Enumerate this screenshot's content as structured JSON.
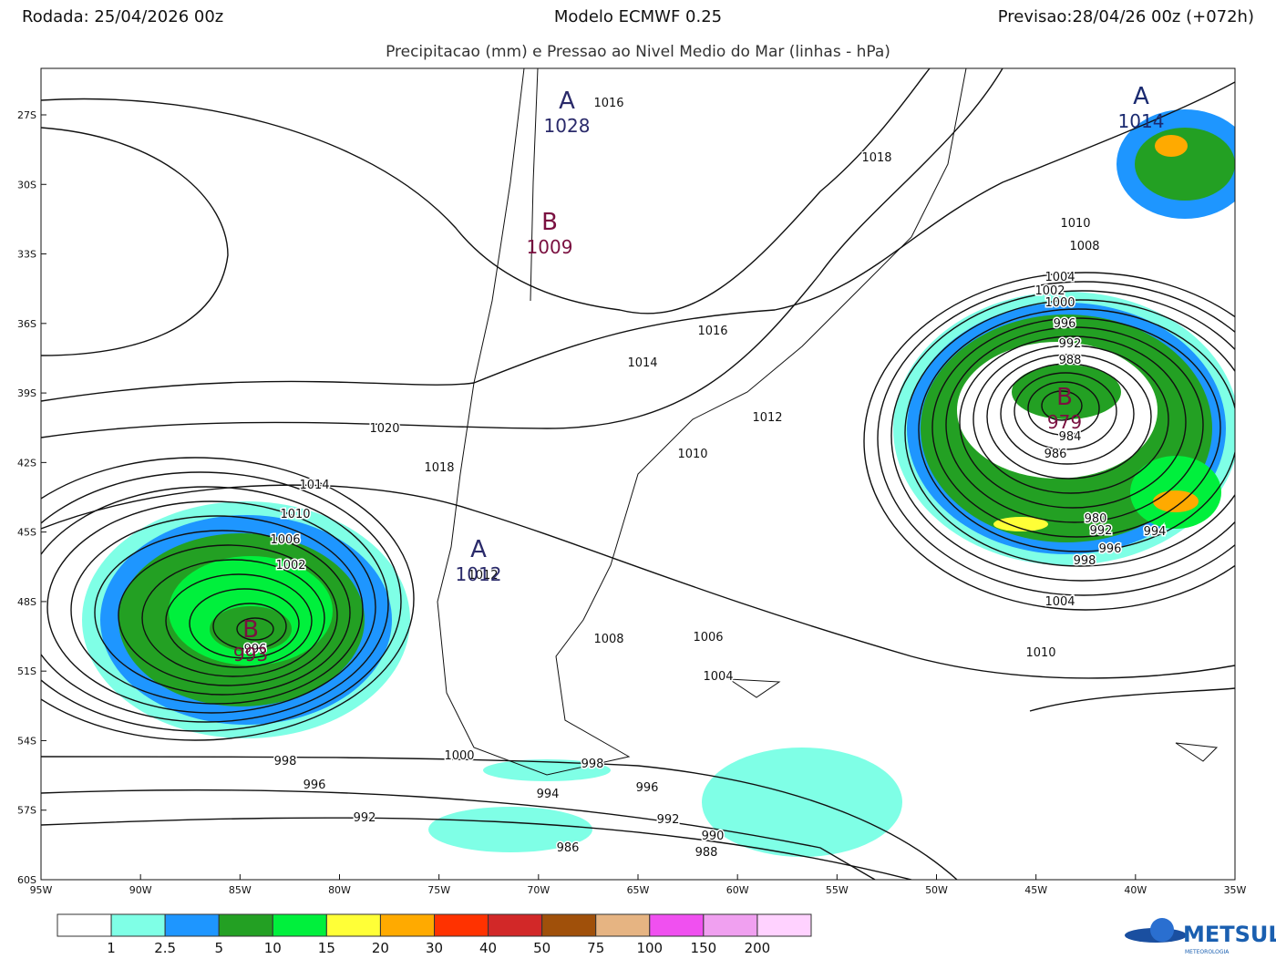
{
  "header": {
    "left": "Rodada: 25/04/2026 00z",
    "center": "Modelo ECMWF 0.25",
    "right": "Previsao:28/04/26 00z (+072h)"
  },
  "subtitle": "Precipitacao (mm) e Pressao ao Nivel Medio do Mar (linhas - hPa)",
  "lat_labels": [
    "27S",
    "30S",
    "33S",
    "36S",
    "39S",
    "42S",
    "45S",
    "48S",
    "51S",
    "54S",
    "57S",
    "60S"
  ],
  "lon_labels": [
    "95W",
    "90W",
    "85W",
    "80W",
    "75W",
    "70W",
    "65W",
    "60W",
    "55W",
    "50W",
    "45W",
    "40W",
    "35W"
  ],
  "isobar_labels": [
    "1016",
    "1018",
    "1010",
    "1008",
    "1004",
    "1002",
    "1000",
    "996",
    "992",
    "988",
    "984",
    "986",
    "980",
    "992",
    "994",
    "996",
    "998",
    "1004",
    "1010",
    "1016",
    "1014",
    "1012",
    "1010",
    "1020",
    "1018",
    "1014",
    "1010",
    "1006",
    "1002",
    "996",
    "1008",
    "1006",
    "1004",
    "1000",
    "998",
    "996",
    "994",
    "996",
    "992",
    "992",
    "990",
    "988",
    "986",
    "998",
    "1012"
  ],
  "centers": [
    {
      "letter": "A",
      "value": "1028",
      "color": "#2a2a6a"
    },
    {
      "letter": "B",
      "value": "1009",
      "color": "#7a1040"
    },
    {
      "letter": "B",
      "value": "979",
      "color": "#7a1040"
    },
    {
      "letter": "A",
      "value": "1014",
      "color": "#1a2a70"
    },
    {
      "letter": "B",
      "value": "993",
      "color": "#7a1040"
    },
    {
      "letter": "A",
      "value": "1012",
      "color": "#2a2a6a"
    }
  ],
  "colorbar": {
    "colors": [
      "#ffffff",
      "#7fffe6",
      "#1e96ff",
      "#23a023",
      "#00f03c",
      "#ffff37",
      "#ffaa00",
      "#ff3200",
      "#d22828",
      "#a0500a",
      "#e6b482",
      "#f050f0",
      "#f0a0f0",
      "#ffd2ff"
    ],
    "labels": [
      "1",
      "2.5",
      "5",
      "10",
      "15",
      "20",
      "30",
      "40",
      "50",
      "75",
      "100",
      "150",
      "200"
    ]
  },
  "logo": {
    "name": "METSUL",
    "tagline": "METEOROLOGIA"
  }
}
